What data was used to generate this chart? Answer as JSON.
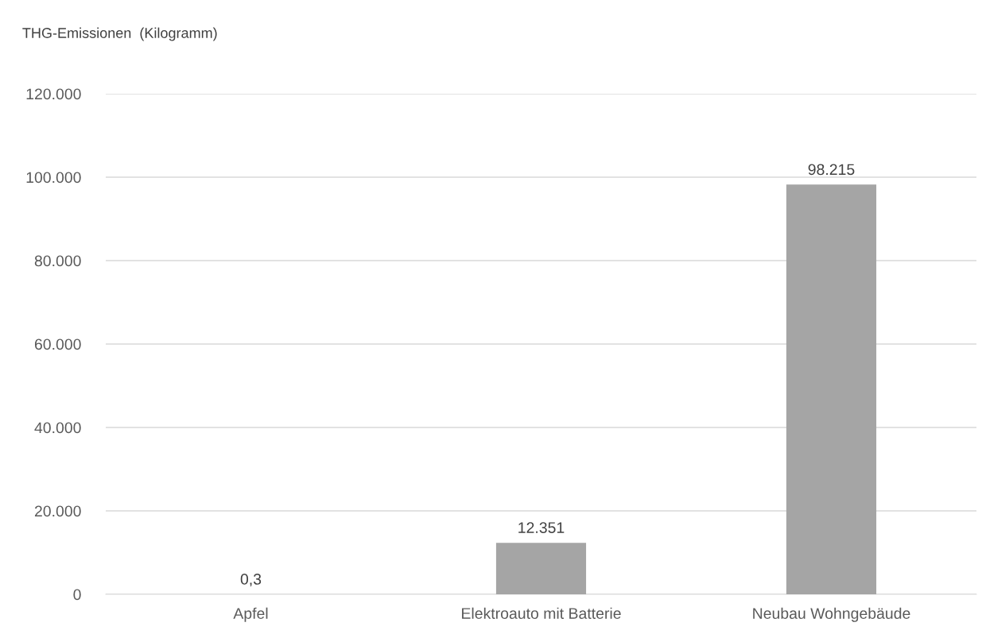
{
  "chart_data": {
    "type": "bar",
    "ylabel": "THG-Emissionen  (Kilogramm)",
    "categories": [
      "Apfel",
      "Elektroauto mit Batterie",
      "Neubau Wohngebäude"
    ],
    "values": [
      0.3,
      12351,
      98215
    ],
    "value_labels": [
      "0,3",
      "12.351",
      "98.215"
    ],
    "color": "#a5a5a5",
    "ylim": [
      0,
      120000
    ],
    "yticks": [
      0,
      {
        "value": 20000,
        "label": "20.000"
      },
      {
        "value": 40000,
        "label": "40.000"
      },
      {
        "value": 60000,
        "label": "60.000"
      },
      {
        "value": 80000,
        "label": "80.000"
      },
      {
        "value": 100000,
        "label": "100.000"
      },
      {
        "value": 120000,
        "label": "120.000"
      }
    ],
    "grid": "y",
    "legend": false
  }
}
